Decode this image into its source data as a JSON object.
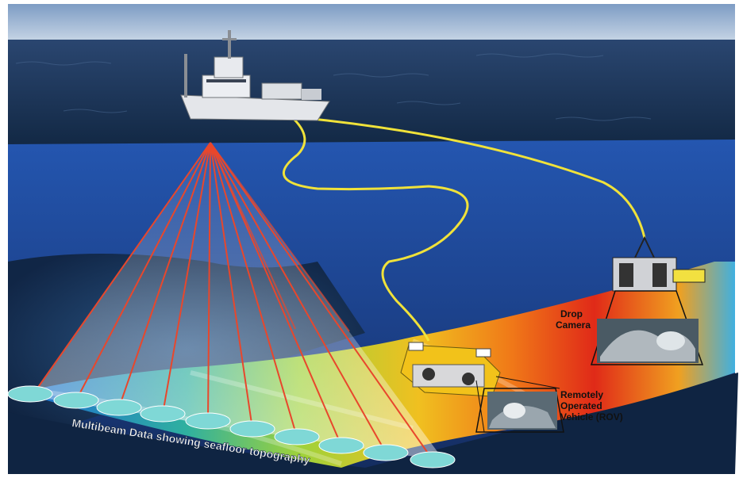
{
  "labels": {
    "drop_camera_line1": "Drop",
    "drop_camera_line2": "Camera",
    "rov_line1": "Remotely",
    "rov_line2": "Operated",
    "rov_line3": "Vehicle (ROV)",
    "multibeam": "Multibeam Data showing seafloor topography"
  },
  "colors": {
    "sky": "#9db8d6",
    "ocean_surface": "#1d3558",
    "water_column": "#1f4a9a",
    "tether": "#f0e23a",
    "sonar_beam": "#e8472c",
    "footprint": "#7fd8d6",
    "rov_body": "#f2c21a"
  },
  "icons": {
    "ship": "research-ship-icon",
    "rov": "rov-icon",
    "drop_camera": "drop-camera-icon"
  }
}
